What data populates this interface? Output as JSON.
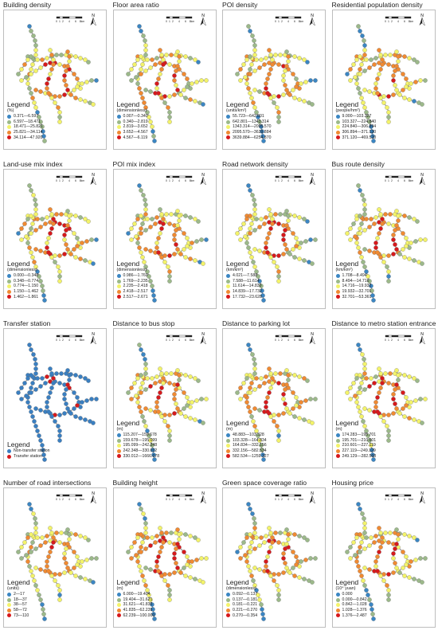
{
  "palette5": [
    "#2b83ba",
    "#abdda4",
    "#ffffbf",
    "#fdae61",
    "#d7191c"
  ],
  "palette5_mixed": [
    "#3b86c3",
    "#9cb98a",
    "#f3f36a",
    "#f08a32",
    "#d7191c"
  ],
  "palette2": [
    "#3a7fc1",
    "#d7191c"
  ],
  "icons": {
    "north": "north-arrow-icon",
    "scale": "scale-bar-icon"
  },
  "scale_labels": [
    "0",
    "1",
    "2",
    "4",
    "6",
    "8km"
  ],
  "north_label": "N",
  "legend_heading": "Legend",
  "panels": [
    {
      "title": "Building density",
      "unit": "(%)",
      "classes": [
        "0.371—6.597",
        "6.597—18.471",
        "18.471—25.821",
        "25.821—34.114",
        "34.114—47.920"
      ]
    },
    {
      "title": "Floor area ratio",
      "unit": "(dimensionless)",
      "classes": [
        "0.007—0.340",
        "0.340—2.819",
        "2.819—3.652",
        "3.652—4.567",
        "4.567—6.119"
      ]
    },
    {
      "title": "POI density",
      "unit": "(units/km²)",
      "classes": [
        "55.723—642.801",
        "642.801—1343.314",
        "1343.314—2095.570",
        "2095.570—3639.884",
        "3639.884—6254.870"
      ]
    },
    {
      "title": "Residential population density",
      "unit": "(people/hm²)",
      "classes": [
        "9.000—103.327",
        "103.327—224.840",
        "224.840—306.894",
        "306.894—371.120",
        "371.120—469.520"
      ]
    },
    {
      "title": "Land-use mix index",
      "unit": "(dimensionless)",
      "classes": [
        "0.000—0.348",
        "0.348—0.774",
        "0.774—1.150",
        "1.150—1.462",
        "1.462—1.861"
      ]
    },
    {
      "title": "POI mix index",
      "unit": "(dimensionless)",
      "classes": [
        "0.986—1.769",
        "1.769—2.235",
        "2.235—2.418",
        "2.418—2.517",
        "2.517—2.671"
      ]
    },
    {
      "title": "Road network density",
      "unit": "(km/km²)",
      "classes": [
        "4.021—7.588",
        "7.588—11.614",
        "11.614—14.839",
        "14.839—17.732",
        "17.732—23.628"
      ]
    },
    {
      "title": "Bus route density",
      "unit": "(km/km²)",
      "classes": [
        "1.708—8.494",
        "8.494—14.716",
        "14.716—19.932",
        "19.932—32.701",
        "32.701—53.361"
      ]
    },
    {
      "title": "Transfer station",
      "unit": "",
      "classes": [
        "Non-transfer station",
        "Transfer station"
      ]
    },
    {
      "title": "Distance to bus stop",
      "unit": "(m)",
      "classes": [
        "115.207—159.678",
        "159.678—195.099",
        "195.099—242.348",
        "242.348—330.012",
        "330.012—1666.678"
      ]
    },
    {
      "title": "Distance to parking lot",
      "unit": "(m)",
      "classes": [
        "48.883—103.328",
        "103.328—164.834",
        "164.834—332.156",
        "332.156—582.534",
        "582.534—1259.327"
      ]
    },
    {
      "title": "Distance to metro station entrance",
      "unit": "(m)",
      "classes": [
        "174.283—195.701",
        "195.701—210.601",
        "210.601—227.119",
        "227.119—249.129",
        "249.129—282.568"
      ]
    },
    {
      "title": "Number of road intersections",
      "unit": "(units)",
      "classes": [
        "2—17",
        "18—37",
        "38—57",
        "58—72",
        "73—110"
      ]
    },
    {
      "title": "Building height",
      "unit": "(m)",
      "classes": [
        "6.000—19.404",
        "19.404—31.621",
        "31.621—41.835",
        "41.835—62.239",
        "62.239—100.000"
      ]
    },
    {
      "title": "Green space coverage ratio",
      "unit": "(dimensionless)",
      "classes": [
        "0.092—0.137",
        "0.137—0.181",
        "0.181—0.221",
        "0.221—0.270",
        "0.270—0.354"
      ]
    },
    {
      "title": "Housing price",
      "unit": "(10⁴ yuan)",
      "classes": [
        "0.000",
        "0.000—0.842",
        "0.842—1.028",
        "1.028—1.376",
        "1.376—2.487"
      ]
    }
  ]
}
